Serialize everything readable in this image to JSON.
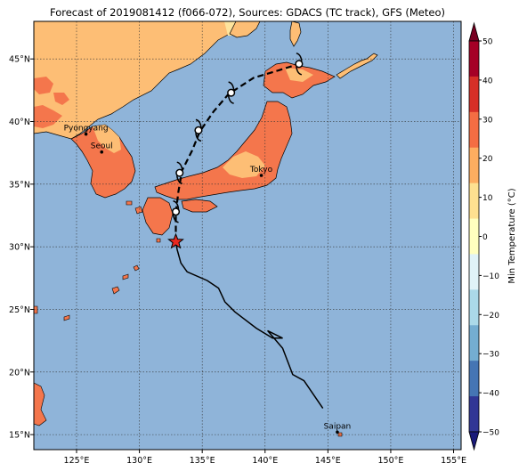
{
  "title": "Forecast of 2019081412 (f066-072), Sources: GDACS (TC track), GFS (Meteo)",
  "map": {
    "lon_ticks": [
      "125°E",
      "130°E",
      "135°E",
      "140°E",
      "145°E",
      "150°E",
      "155°E"
    ],
    "lat_ticks": [
      "15°N",
      "20°N",
      "25°N",
      "30°N",
      "35°N",
      "40°N",
      "45°N"
    ],
    "cities": [
      {
        "name": "Pyongyang",
        "lon": 125.75,
        "lat": 39.0
      },
      {
        "name": "Seoul",
        "lon": 127.0,
        "lat": 37.57
      },
      {
        "name": "Tokyo",
        "lon": 139.7,
        "lat": 35.7
      },
      {
        "name": "Saipan",
        "lon": 145.75,
        "lat": 15.2
      }
    ],
    "colors": {
      "ocean": "#8fb4d9",
      "land_warm": "#fdbe75",
      "land_hot": "#f4764c",
      "land_mild": "#fee49d",
      "track": "#000000",
      "marker": "#e8281f"
    }
  },
  "colorbar": {
    "label": "Min Temperature (°C)",
    "ticks": [
      "50",
      "40",
      "30",
      "20",
      "10",
      "0",
      "−10",
      "−20",
      "−30",
      "−40",
      "−50"
    ],
    "colors": [
      "#780021",
      "#a50026",
      "#d62f27",
      "#f46d43",
      "#fdad60",
      "#fee090",
      "#ffffbf",
      "#e0f3f8",
      "#abd9e9",
      "#74add1",
      "#4575b4",
      "#313695",
      "#1a1a7a"
    ]
  },
  "chart_data": {
    "type": "map",
    "variable": "Min Temperature (°C)",
    "track_observed": [
      {
        "lon": 144.6,
        "lat": 17.1
      },
      {
        "lon": 143.1,
        "lat": 19.3
      },
      {
        "lon": 142.2,
        "lat": 19.8
      },
      {
        "lon": 141.4,
        "lat": 21.9
      },
      {
        "lon": 140.2,
        "lat": 23.3
      },
      {
        "lon": 141.4,
        "lat": 22.7
      },
      {
        "lon": 140.6,
        "lat": 22.7
      },
      {
        "lon": 139.3,
        "lat": 23.5
      },
      {
        "lon": 137.6,
        "lat": 24.8
      },
      {
        "lon": 136.8,
        "lat": 25.6
      },
      {
        "lon": 136.3,
        "lat": 26.7
      },
      {
        "lon": 135.4,
        "lat": 27.3
      },
      {
        "lon": 133.8,
        "lat": 28.0
      },
      {
        "lon": 133.3,
        "lat": 28.7
      },
      {
        "lon": 133.0,
        "lat": 29.8
      },
      {
        "lon": 132.9,
        "lat": 30.4
      }
    ],
    "current_position": {
      "lon": 132.9,
      "lat": 30.4
    },
    "track_forecast": [
      {
        "lon": 132.9,
        "lat": 30.4
      },
      {
        "lon": 132.9,
        "lat": 32.7
      },
      {
        "lon": 133.1,
        "lat": 34.4
      },
      {
        "lon": 133.4,
        "lat": 36.1
      },
      {
        "lon": 134.2,
        "lat": 37.7
      },
      {
        "lon": 134.8,
        "lat": 39.2
      },
      {
        "lon": 135.9,
        "lat": 40.8
      },
      {
        "lon": 137.1,
        "lat": 42.2
      },
      {
        "lon": 139.1,
        "lat": 43.5
      },
      {
        "lon": 141.1,
        "lat": 44.1
      },
      {
        "lon": 142.7,
        "lat": 44.6
      }
    ],
    "forecast_positions": [
      {
        "lon": 132.9,
        "lat": 32.8
      },
      {
        "lon": 133.2,
        "lat": 35.9
      },
      {
        "lon": 134.7,
        "lat": 39.3
      },
      {
        "lon": 137.3,
        "lat": 42.3
      },
      {
        "lon": 142.7,
        "lat": 44.6
      }
    ]
  }
}
